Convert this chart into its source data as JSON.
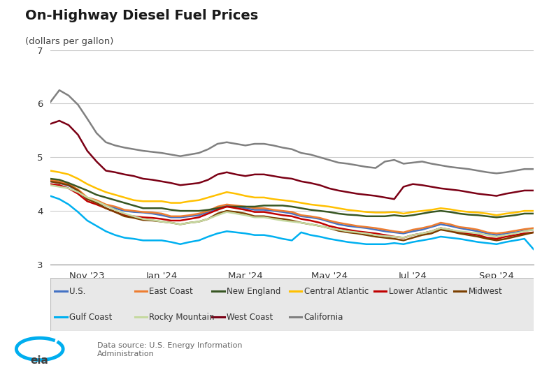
{
  "title": "On-Highway Diesel Fuel Prices",
  "ylabel": "(dollars per gallon)",
  "ylim": [
    3.0,
    7.0
  ],
  "yticks": [
    3,
    4,
    5,
    6,
    7
  ],
  "background_color": "#ffffff",
  "series": {
    "U.S.": {
      "color": "#4472C4",
      "values": [
        4.55,
        4.52,
        4.47,
        4.38,
        4.22,
        4.18,
        4.1,
        4.05,
        4.0,
        3.98,
        3.97,
        3.95,
        3.92,
        3.88,
        3.88,
        3.9,
        3.92,
        3.98,
        4.05,
        4.1,
        4.08,
        4.05,
        4.02,
        4.02,
        4.0,
        3.98,
        3.95,
        3.9,
        3.88,
        3.85,
        3.8,
        3.75,
        3.72,
        3.7,
        3.68,
        3.65,
        3.62,
        3.6,
        3.58,
        3.62,
        3.65,
        3.7,
        3.75,
        3.72,
        3.68,
        3.65,
        3.62,
        3.58,
        3.55,
        3.58,
        3.6,
        3.63,
        3.65
      ]
    },
    "East Coast": {
      "color": "#ED7D31",
      "values": [
        4.58,
        4.55,
        4.5,
        4.4,
        4.25,
        4.2,
        4.12,
        4.08,
        4.02,
        4.0,
        3.98,
        3.97,
        3.95,
        3.9,
        3.9,
        3.92,
        3.95,
        4.0,
        4.08,
        4.12,
        4.1,
        4.08,
        4.05,
        4.05,
        4.02,
        4.0,
        3.98,
        3.92,
        3.9,
        3.87,
        3.82,
        3.78,
        3.75,
        3.72,
        3.7,
        3.68,
        3.65,
        3.62,
        3.6,
        3.65,
        3.68,
        3.72,
        3.78,
        3.75,
        3.7,
        3.68,
        3.65,
        3.6,
        3.58,
        3.6,
        3.63,
        3.66,
        3.68
      ]
    },
    "New England": {
      "color": "#375623",
      "values": [
        4.6,
        4.58,
        4.52,
        4.45,
        4.38,
        4.3,
        4.25,
        4.2,
        4.15,
        4.1,
        4.05,
        4.05,
        4.05,
        4.02,
        4.0,
        4.0,
        4.0,
        4.02,
        4.05,
        4.08,
        4.08,
        4.08,
        4.08,
        4.1,
        4.1,
        4.1,
        4.08,
        4.05,
        4.02,
        4.0,
        3.98,
        3.95,
        3.93,
        3.92,
        3.9,
        3.9,
        3.9,
        3.92,
        3.9,
        3.92,
        3.95,
        3.98,
        4.0,
        3.98,
        3.95,
        3.93,
        3.92,
        3.9,
        3.88,
        3.9,
        3.92,
        3.95,
        3.95
      ]
    },
    "Central Atlantic": {
      "color": "#FFC000",
      "values": [
        4.75,
        4.72,
        4.68,
        4.6,
        4.5,
        4.42,
        4.35,
        4.3,
        4.25,
        4.2,
        4.18,
        4.18,
        4.18,
        4.15,
        4.15,
        4.18,
        4.2,
        4.25,
        4.3,
        4.35,
        4.32,
        4.28,
        4.25,
        4.25,
        4.22,
        4.2,
        4.18,
        4.15,
        4.12,
        4.1,
        4.08,
        4.05,
        4.02,
        4.0,
        3.98,
        3.97,
        3.97,
        3.98,
        3.95,
        3.98,
        4.0,
        4.02,
        4.05,
        4.03,
        4.0,
        3.98,
        3.97,
        3.95,
        3.92,
        3.95,
        3.97,
        4.0,
        4.0
      ]
    },
    "Lower Atlantic": {
      "color": "#C00000",
      "values": [
        4.5,
        4.48,
        4.42,
        4.32,
        4.18,
        4.12,
        4.05,
        3.98,
        3.92,
        3.9,
        3.88,
        3.87,
        3.85,
        3.82,
        3.82,
        3.85,
        3.88,
        3.95,
        4.02,
        4.08,
        4.05,
        4.02,
        3.98,
        3.98,
        3.95,
        3.92,
        3.9,
        3.85,
        3.82,
        3.78,
        3.72,
        3.68,
        3.65,
        3.62,
        3.6,
        3.58,
        3.55,
        3.52,
        3.5,
        3.55,
        3.58,
        3.62,
        3.68,
        3.65,
        3.6,
        3.58,
        3.55,
        3.5,
        3.48,
        3.52,
        3.55,
        3.58,
        3.6
      ]
    },
    "Midwest": {
      "color": "#7B3F00",
      "values": [
        4.55,
        4.52,
        4.48,
        4.38,
        4.22,
        4.15,
        4.05,
        3.98,
        3.9,
        3.87,
        3.83,
        3.82,
        3.8,
        3.78,
        3.75,
        3.78,
        3.8,
        3.85,
        3.95,
        4.0,
        3.98,
        3.95,
        3.9,
        3.9,
        3.87,
        3.85,
        3.82,
        3.78,
        3.75,
        3.72,
        3.68,
        3.63,
        3.6,
        3.58,
        3.55,
        3.52,
        3.5,
        3.48,
        3.45,
        3.5,
        3.55,
        3.58,
        3.65,
        3.62,
        3.58,
        3.55,
        3.52,
        3.48,
        3.45,
        3.48,
        3.52,
        3.56,
        3.6
      ]
    },
    "Gulf Coast": {
      "color": "#00B0F0",
      "values": [
        4.28,
        4.22,
        4.12,
        3.98,
        3.82,
        3.72,
        3.62,
        3.55,
        3.5,
        3.48,
        3.45,
        3.45,
        3.45,
        3.42,
        3.38,
        3.42,
        3.45,
        3.52,
        3.58,
        3.62,
        3.6,
        3.58,
        3.55,
        3.55,
        3.52,
        3.48,
        3.45,
        3.6,
        3.55,
        3.52,
        3.48,
        3.45,
        3.42,
        3.4,
        3.38,
        3.38,
        3.38,
        3.4,
        3.38,
        3.42,
        3.45,
        3.48,
        3.52,
        3.5,
        3.48,
        3.45,
        3.42,
        3.4,
        3.38,
        3.42,
        3.45,
        3.48,
        3.28
      ]
    },
    "Rocky Mountain": {
      "color": "#C5D9A0",
      "values": [
        4.48,
        4.45,
        4.42,
        4.35,
        4.25,
        4.18,
        4.1,
        4.02,
        3.95,
        3.9,
        3.85,
        3.83,
        3.8,
        3.78,
        3.75,
        3.78,
        3.8,
        3.85,
        3.92,
        3.98,
        3.95,
        3.92,
        3.88,
        3.88,
        3.85,
        3.82,
        3.8,
        3.78,
        3.75,
        3.72,
        3.68,
        3.65,
        3.62,
        3.6,
        3.58,
        3.55,
        3.53,
        3.52,
        3.5,
        3.55,
        3.58,
        3.62,
        3.68,
        3.65,
        3.62,
        3.6,
        3.58,
        3.55,
        3.52,
        3.55,
        3.58,
        3.62,
        3.65
      ]
    },
    "West Coast": {
      "color": "#7B0015",
      "values": [
        5.62,
        5.68,
        5.6,
        5.42,
        5.12,
        4.92,
        4.75,
        4.72,
        4.68,
        4.65,
        4.6,
        4.58,
        4.55,
        4.52,
        4.48,
        4.5,
        4.52,
        4.58,
        4.68,
        4.72,
        4.68,
        4.65,
        4.68,
        4.68,
        4.65,
        4.62,
        4.6,
        4.55,
        4.52,
        4.48,
        4.42,
        4.38,
        4.35,
        4.32,
        4.3,
        4.28,
        4.25,
        4.22,
        4.45,
        4.5,
        4.48,
        4.45,
        4.42,
        4.4,
        4.38,
        4.35,
        4.32,
        4.3,
        4.28,
        4.32,
        4.35,
        4.38,
        4.38
      ]
    },
    "California": {
      "color": "#808080",
      "values": [
        6.02,
        6.25,
        6.15,
        5.98,
        5.72,
        5.45,
        5.28,
        5.22,
        5.18,
        5.15,
        5.12,
        5.1,
        5.08,
        5.05,
        5.02,
        5.05,
        5.08,
        5.15,
        5.25,
        5.28,
        5.25,
        5.22,
        5.25,
        5.25,
        5.22,
        5.18,
        5.15,
        5.08,
        5.05,
        5.0,
        4.95,
        4.9,
        4.88,
        4.85,
        4.82,
        4.8,
        4.92,
        4.95,
        4.88,
        4.9,
        4.92,
        4.88,
        4.85,
        4.82,
        4.8,
        4.78,
        4.75,
        4.72,
        4.7,
        4.72,
        4.75,
        4.78,
        4.78
      ]
    }
  },
  "xtick_positions": [
    4,
    12,
    21,
    30,
    39,
    48
  ],
  "xtick_labels": [
    "Nov '23",
    "Jan '24",
    "Mar '24",
    "May '24",
    "Jul '24",
    "Sep '24"
  ],
  "legend_order": [
    "U.S.",
    "East Coast",
    "New England",
    "Central Atlantic",
    "Lower Atlantic",
    "Midwest",
    "Gulf Coast",
    "Rocky Mountain",
    "West Coast",
    "California"
  ],
  "source_text": "Data source: U.S. Energy Information\nAdministration"
}
